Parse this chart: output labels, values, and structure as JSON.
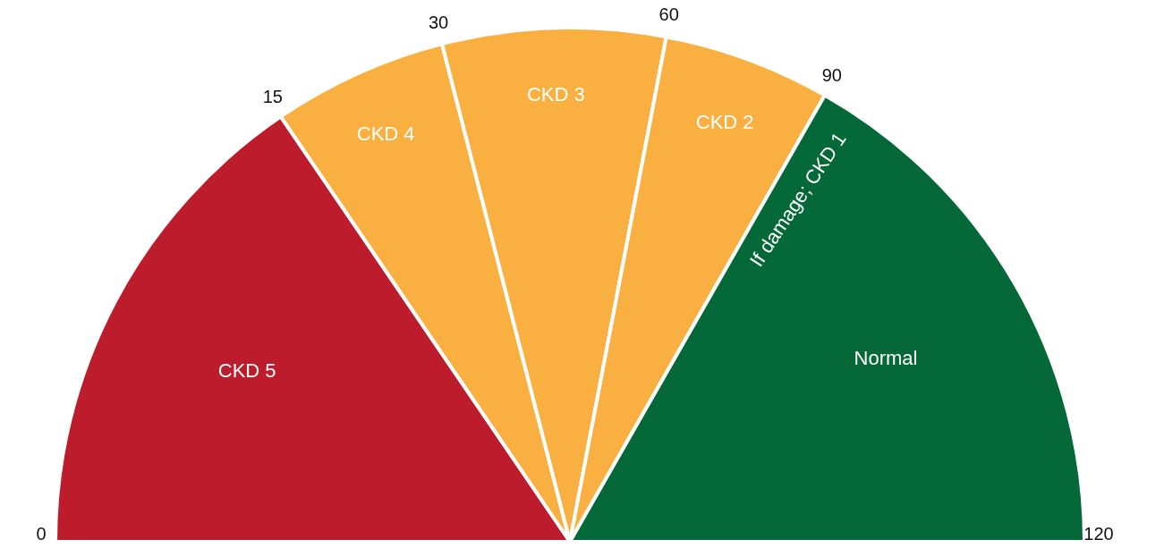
{
  "chart_data": {
    "type": "pie",
    "categories": [
      "CKD 5",
      "CKD 4",
      "CKD 3",
      "CKD 2",
      "Normal"
    ],
    "values": [
      31,
      11,
      14,
      10.5,
      33.5
    ],
    "colors": [
      "#bc1c2c",
      "#f9b040",
      "#f9b040",
      "#f9b040",
      "#056839"
    ],
    "annotations": [
      "0",
      "15",
      "30",
      "60",
      "90",
      "120",
      "If damage; CKD 1"
    ]
  }
}
